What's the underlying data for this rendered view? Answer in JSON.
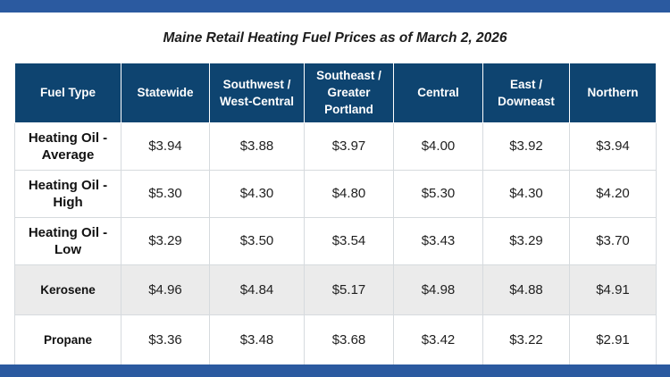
{
  "title": "Maine Retail Heating Fuel Prices as of March 2, 2026",
  "columns": [
    "Fuel Type",
    "Statewide",
    "Southwest / West-Central",
    "Southeast / Greater Portland",
    "Central",
    "East / Downeast",
    "Northern"
  ],
  "rows": [
    {
      "fuel": "Heating Oil - Average",
      "values": [
        "$3.94",
        "$3.88",
        "$3.97",
        "$4.00",
        "$3.92",
        "$3.94"
      ]
    },
    {
      "fuel": "Heating Oil - High",
      "values": [
        "$5.30",
        "$4.30",
        "$4.80",
        "$5.30",
        "$4.30",
        "$4.20"
      ]
    },
    {
      "fuel": "Heating Oil - Low",
      "values": [
        "$3.29",
        "$3.50",
        "$3.54",
        "$3.43",
        "$3.29",
        "$3.70"
      ]
    },
    {
      "fuel": "Kerosene",
      "values": [
        "$4.96",
        "$4.84",
        "$5.17",
        "$4.98",
        "$4.88",
        "$4.91"
      ]
    },
    {
      "fuel": "Propane",
      "values": [
        "$3.36",
        "$3.48",
        "$3.68",
        "$3.42",
        "$3.22",
        "$2.91"
      ]
    }
  ],
  "colors": {
    "header_bg": "#0e4470",
    "band": "#2b5aa0",
    "shaded_row": "#ebebeb"
  }
}
